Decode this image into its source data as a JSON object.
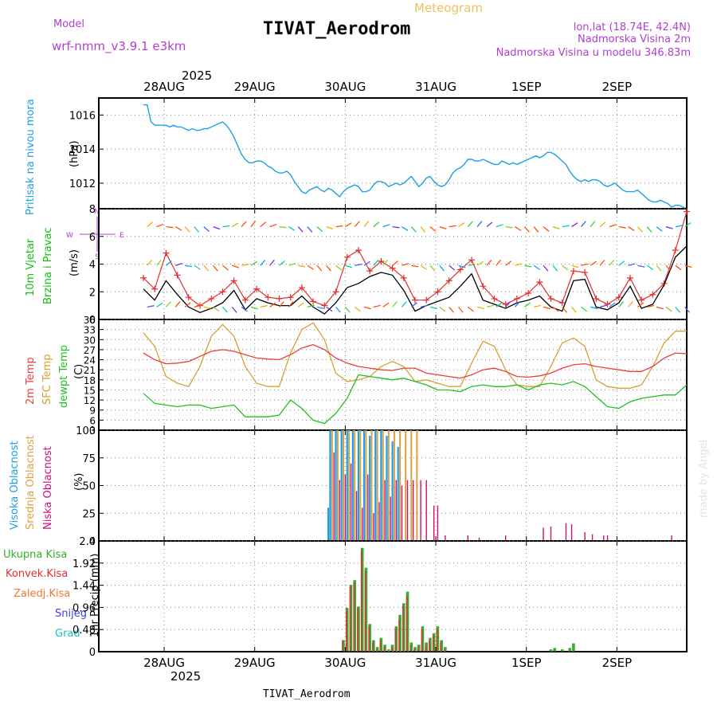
{
  "header": {
    "model_label": "Model",
    "model_name": "wrf-nmm_v3.9.1  e3km",
    "subtitle": "Meteogram",
    "station": "TIVAT_Aerodrom",
    "lonlat": "lon,lat (18.74E, 42.4N)",
    "elevation": "Nadmorska Visina 2m",
    "model_elevation": "Nadmorska Visina u modelu 346.83m",
    "footer_station": "TIVAT_Aerodrom",
    "credit": "made by Angel"
  },
  "colors": {
    "pressure": "#1fa0e6",
    "wind_label": "#10c010",
    "temp2m": "#e8403a",
    "sfc": "#d8a030",
    "dewpt": "#20c020",
    "high_cloud": "#1aa0e8",
    "mid_cloud": "#e0a040",
    "low_cloud": "#cc1077",
    "total_precip": "#30b030",
    "conv_precip": "#e03030",
    "frozen": "#f07830",
    "snow": "#4040e0",
    "graupel": "#20c0c0",
    "purple": "#b040d0",
    "orange": "#f0c060"
  },
  "time_axis": {
    "year": "2025",
    "days": [
      "28AUG",
      "29AUG",
      "30AUG",
      "31AUG",
      "1SEP",
      "2SEP"
    ],
    "start_hour": 0,
    "end_hour": 144
  },
  "chart_data": [
    {
      "type": "line",
      "title": "Pritisak na nivou mora",
      "ylabel": "(hPa)",
      "ylim": [
        1010.5,
        1017
      ],
      "yticks": [
        "1012",
        "1014",
        "1016"
      ],
      "x_hours": [
        0,
        1,
        2,
        3,
        4,
        5,
        6,
        7,
        8,
        9,
        10,
        11,
        12,
        13,
        14,
        15,
        16,
        17,
        18,
        19,
        20,
        21,
        22,
        23,
        24,
        25,
        26,
        27,
        28,
        29,
        30,
        31,
        32,
        33,
        34,
        35,
        36,
        37,
        38,
        39,
        40,
        41,
        42,
        43,
        44,
        45,
        46,
        47,
        48,
        49,
        50,
        51,
        52,
        53,
        54,
        55,
        56,
        57,
        58,
        59,
        60,
        61,
        62,
        63,
        64,
        65,
        66,
        67,
        68,
        69,
        70,
        71,
        72,
        73,
        74,
        75,
        76,
        77,
        78,
        79,
        80,
        81,
        82,
        83,
        84,
        85,
        86,
        87,
        88,
        89,
        90,
        91,
        92,
        93,
        94,
        95,
        96,
        97,
        98,
        99,
        100,
        101,
        102,
        103,
        104,
        105,
        106,
        107,
        108,
        109,
        110,
        111,
        112,
        113,
        114,
        115,
        116,
        117,
        118,
        119,
        120,
        121,
        122,
        123,
        124,
        125,
        126,
        127,
        128,
        129,
        130,
        131,
        132,
        133,
        134,
        135,
        136,
        137,
        138,
        139,
        140,
        141,
        142,
        143,
        144
      ],
      "values": [
        1016.6,
        1016.6,
        1015.6,
        1015.4,
        1015.4,
        1015.4,
        1015.4,
        1015.3,
        1015.4,
        1015.3,
        1015.3,
        1015.2,
        1015.1,
        1015.2,
        1015.1,
        1015.1,
        1015.2,
        1015.2,
        1015.3,
        1015.4,
        1015.5,
        1015.6,
        1015.4,
        1015.1,
        1014.7,
        1014.2,
        1013.7,
        1013.4,
        1013.2,
        1013.2,
        1013.3,
        1013.3,
        1013.2,
        1013.0,
        1012.9,
        1012.7,
        1012.6,
        1012.6,
        1012.7,
        1012.5,
        1012.1,
        1011.8,
        1011.5,
        1011.4,
        1011.6,
        1011.7,
        1011.8,
        1011.6,
        1011.5,
        1011.7,
        1011.6,
        1011.4,
        1011.2,
        1011.5,
        1011.7,
        1011.8,
        1011.9,
        1011.8,
        1011.5,
        1011.5,
        1011.6,
        1011.9,
        1012.1,
        1012.1,
        1012.0,
        1011.8,
        1011.9,
        1012.0,
        1011.9,
        1012.0,
        1012.2,
        1012.4,
        1012.1,
        1011.8,
        1012.0,
        1012.3,
        1012.4,
        1012.1,
        1011.9,
        1011.8,
        1011.9,
        1012.2,
        1012.6,
        1012.8,
        1012.9,
        1013.1,
        1013.4,
        1013.4,
        1013.3,
        1013.3,
        1013.4,
        1013.3,
        1013.2,
        1013.1,
        1013.1,
        1013.3,
        1013.2,
        1013.1,
        1013.2,
        1013.1,
        1013.2,
        1013.3,
        1013.4,
        1013.5,
        1013.6,
        1013.5,
        1013.6,
        1013.8,
        1013.8,
        1013.7,
        1013.5,
        1013.3,
        1013.1,
        1012.7,
        1012.4,
        1012.2,
        1012.1,
        1012.2,
        1012.1,
        1012.2,
        1012.2,
        1012.1,
        1011.9,
        1011.8,
        1011.9,
        1012.0,
        1011.8,
        1011.6,
        1011.5,
        1011.5,
        1011.5,
        1011.6,
        1011.4,
        1011.2,
        1011.0,
        1010.9,
        1010.9,
        1011.0,
        1010.9,
        1010.8,
        1010.6,
        1010.7,
        1010.7,
        1010.6,
        1010.5
      ]
    },
    {
      "type": "line",
      "title": "10m Vjetar Brzina i Pravac",
      "ylabel": "(m/s)",
      "ylim": [
        0,
        8
      ],
      "yticks": [
        "0",
        "2",
        "4",
        "6",
        "8"
      ],
      "compass": [
        "N",
        "W",
        "E",
        "S"
      ],
      "x_hours": [
        0,
        3,
        6,
        9,
        12,
        15,
        18,
        21,
        24,
        27,
        30,
        33,
        36,
        39,
        42,
        45,
        48,
        51,
        54,
        57,
        60,
        63,
        66,
        69,
        72,
        75,
        78,
        81,
        84,
        87,
        90,
        93,
        96,
        99,
        102,
        105,
        108,
        111,
        114,
        117,
        120,
        123,
        126,
        129,
        132,
        135,
        138,
        141,
        144
      ],
      "speed": [
        2.2,
        1.4,
        2.8,
        1.8,
        0.9,
        0.5,
        0.8,
        1.2,
        2.1,
        0.7,
        1.5,
        1.2,
        1.0,
        1.0,
        1.7,
        0.9,
        0.4,
        1.2,
        2.3,
        2.6,
        3.1,
        3.4,
        3.2,
        2.1,
        0.6,
        1.0,
        1.3,
        1.6,
        2.4,
        3.3,
        1.4,
        1.1,
        0.8,
        1.2,
        1.4,
        1.7,
        0.9,
        0.6,
        2.8,
        2.9,
        0.9,
        0.7,
        1.2,
        2.4,
        0.8,
        1.1,
        2.5,
        4.5,
        5.3
      ],
      "gust": [
        3.0,
        2.2,
        4.8,
        3.2,
        1.6,
        1.0,
        1.5,
        2.0,
        2.8,
        1.4,
        2.2,
        1.6,
        1.5,
        1.6,
        2.3,
        1.3,
        1.0,
        2.0,
        4.5,
        5.0,
        3.5,
        4.2,
        3.7,
        3.0,
        1.4,
        1.4,
        2.0,
        2.8,
        3.6,
        4.3,
        2.4,
        1.5,
        1.1,
        1.5,
        1.9,
        2.7,
        1.5,
        1.2,
        3.5,
        3.4,
        1.5,
        1.1,
        1.6,
        3.0,
        1.4,
        1.8,
        2.6,
        5.0,
        7.8
      ]
    },
    {
      "type": "line",
      "title": "2m Temp / SFC Temp / dewpt Temp",
      "series_labels": [
        "2m Temp",
        "SFC Temp",
        "dewpt Temp"
      ],
      "ylabel": "(C)",
      "ylim": [
        3,
        36
      ],
      "yticks": [
        "3",
        "6",
        "9",
        "12",
        "15",
        "18",
        "21",
        "24",
        "27",
        "30",
        "33",
        "36"
      ],
      "x_hours": [
        0,
        3,
        6,
        9,
        12,
        15,
        18,
        21,
        24,
        27,
        30,
        33,
        36,
        39,
        42,
        45,
        48,
        51,
        54,
        57,
        60,
        63,
        66,
        69,
        72,
        75,
        78,
        81,
        84,
        87,
        90,
        93,
        96,
        99,
        102,
        105,
        108,
        111,
        114,
        117,
        120,
        123,
        126,
        129,
        132,
        135,
        138,
        141,
        144
      ],
      "temp2m": [
        26.0,
        24.0,
        22.8,
        23.0,
        23.5,
        25.0,
        26.5,
        27.0,
        26.5,
        25.5,
        24.5,
        24.2,
        24.0,
        25.5,
        27.5,
        28.5,
        27.0,
        24.5,
        23.0,
        22.0,
        21.5,
        21.0,
        20.8,
        21.5,
        21.5,
        20.0,
        19.5,
        19.0,
        18.5,
        19.5,
        21.0,
        21.5,
        20.5,
        19.0,
        18.8,
        19.2,
        20.0,
        21.5,
        22.5,
        22.8,
        22.0,
        21.5,
        21.0,
        20.5,
        20.5,
        22.0,
        24.5,
        26.0,
        25.8
      ],
      "sfc": [
        32.0,
        28.0,
        19.0,
        17.0,
        16.0,
        22.0,
        31.0,
        34.5,
        31.0,
        22.0,
        17.0,
        16.0,
        16.0,
        26.0,
        33.0,
        35.0,
        30.0,
        20.0,
        17.5,
        18.0,
        19.0,
        22.0,
        23.5,
        22.0,
        17.5,
        18.0,
        17.0,
        16.0,
        16.0,
        23.0,
        29.5,
        28.0,
        21.0,
        16.5,
        16.0,
        16.0,
        22.0,
        29.0,
        30.5,
        28.0,
        18.0,
        16.0,
        15.5,
        15.5,
        16.5,
        22.0,
        29.0,
        32.5,
        32.5
      ],
      "dewpt": [
        14.0,
        11.0,
        10.5,
        10.0,
        10.5,
        10.5,
        9.5,
        10.0,
        10.5,
        7.0,
        7.0,
        7.0,
        7.5,
        12.0,
        9.5,
        6.0,
        5.0,
        8.0,
        12.5,
        19.5,
        19.0,
        18.5,
        18.0,
        18.5,
        17.5,
        16.5,
        15.0,
        15.0,
        14.5,
        16.0,
        16.5,
        16.0,
        16.0,
        16.5,
        15.0,
        16.5,
        17.0,
        16.5,
        17.5,
        16.0,
        13.0,
        10.0,
        9.5,
        11.5,
        12.5,
        13.0,
        13.5,
        13.5,
        16.5
      ]
    },
    {
      "type": "bar",
      "title": "Visoka / Srednja / Niska Oblacnost",
      "series_labels": [
        "Visoka Oblacnost",
        "Srednja Oblacnost",
        "Niska Oblacnost"
      ],
      "ylabel": "(%)",
      "ylim": [
        0,
        100
      ],
      "yticks": [
        "0",
        "25",
        "50",
        "75",
        "100"
      ],
      "high": [
        [
          49,
          30
        ],
        [
          49.5,
          100
        ],
        [
          51,
          100
        ],
        [
          52.5,
          100
        ],
        [
          54,
          100
        ],
        [
          55.5,
          100
        ],
        [
          57,
          100
        ],
        [
          58.5,
          100
        ],
        [
          60,
          95
        ],
        [
          61.5,
          100
        ],
        [
          63,
          100
        ],
        [
          64.5,
          95
        ],
        [
          66,
          90
        ],
        [
          67.5,
          85
        ]
      ],
      "mid": [
        [
          50,
          100
        ],
        [
          51.5,
          100
        ],
        [
          53,
          100
        ],
        [
          54.5,
          100
        ],
        [
          56,
          100
        ],
        [
          57.5,
          100
        ],
        [
          59,
          100
        ],
        [
          60.5,
          100
        ],
        [
          62,
          100
        ],
        [
          63.5,
          100
        ],
        [
          65,
          100
        ],
        [
          66.5,
          100
        ],
        [
          68,
          100
        ],
        [
          69.5,
          100
        ],
        [
          71,
          100
        ],
        [
          72.5,
          100
        ]
      ],
      "low": [
        [
          50.5,
          80
        ],
        [
          52,
          55
        ],
        [
          53.5,
          60
        ],
        [
          55,
          70
        ],
        [
          56.5,
          45
        ],
        [
          58,
          30
        ],
        [
          59.5,
          60
        ],
        [
          61,
          25
        ],
        [
          62.5,
          35
        ],
        [
          64,
          55
        ],
        [
          65.5,
          40
        ],
        [
          67,
          55
        ],
        [
          68.5,
          50
        ],
        [
          70,
          55
        ],
        [
          71.5,
          55
        ],
        [
          73.5,
          55
        ],
        [
          75,
          55
        ],
        [
          77,
          32
        ],
        [
          78,
          32
        ],
        [
          80,
          5
        ],
        [
          86,
          5
        ],
        [
          89,
          3
        ],
        [
          96,
          5
        ],
        [
          106,
          12
        ],
        [
          108,
          13
        ],
        [
          112,
          16
        ],
        [
          113.5,
          15
        ],
        [
          117,
          8
        ],
        [
          119,
          6
        ],
        [
          122,
          5
        ],
        [
          123,
          5
        ],
        [
          140,
          5
        ]
      ]
    },
    {
      "type": "bar",
      "title": "1hr Precip",
      "series_labels": [
        "Ukupna Kisa",
        "Konvek.Kisa",
        "Zaledj.Kisa",
        "Snijeg",
        "Grad"
      ],
      "ylabel": "1hr Precip (mm)",
      "ylim": [
        0,
        2.4
      ],
      "yticks": [
        "0",
        "0.48",
        "0.96",
        "1.44",
        "1.92",
        "2.4"
      ],
      "total": [
        [
          53,
          0.25
        ],
        [
          54,
          0.95
        ],
        [
          55,
          1.45
        ],
        [
          56,
          1.55
        ],
        [
          57,
          0.98
        ],
        [
          58,
          2.25
        ],
        [
          59,
          1.82
        ],
        [
          60,
          0.6
        ],
        [
          61,
          0.25
        ],
        [
          62,
          0.1
        ],
        [
          63,
          0.3
        ],
        [
          64,
          0.15
        ],
        [
          65,
          0.05
        ],
        [
          66,
          0.15
        ],
        [
          67,
          0.55
        ],
        [
          68,
          0.8
        ],
        [
          69,
          1.05
        ],
        [
          70,
          1.3
        ],
        [
          71,
          0.2
        ],
        [
          72,
          0.1
        ],
        [
          73,
          0.15
        ],
        [
          74,
          0.55
        ],
        [
          75,
          0.2
        ],
        [
          76,
          0.3
        ],
        [
          77,
          0.4
        ],
        [
          78,
          0.55
        ],
        [
          79,
          0.25
        ],
        [
          80,
          0.1
        ],
        [
          108,
          0.05
        ],
        [
          109,
          0.08
        ],
        [
          111,
          0.05
        ],
        [
          113,
          0.08
        ],
        [
          114,
          0.18
        ]
      ],
      "conv": [
        [
          53,
          0.25
        ],
        [
          54,
          0.9
        ],
        [
          55,
          1.4
        ],
        [
          56,
          1.5
        ],
        [
          57,
          0.95
        ],
        [
          58,
          2.2
        ],
        [
          59,
          1.75
        ],
        [
          60,
          0.55
        ],
        [
          61,
          0.2
        ],
        [
          62,
          0.05
        ],
        [
          63,
          0.25
        ],
        [
          64,
          0.1
        ],
        [
          66,
          0.1
        ],
        [
          67,
          0.5
        ],
        [
          68,
          0.7
        ],
        [
          69,
          1.0
        ],
        [
          70,
          1.2
        ],
        [
          71,
          0.15
        ],
        [
          72,
          0.05
        ],
        [
          73,
          0.1
        ],
        [
          74,
          0.5
        ],
        [
          75,
          0.15
        ],
        [
          76,
          0.25
        ],
        [
          77,
          0.35
        ],
        [
          78,
          0.5
        ],
        [
          79,
          0.2
        ],
        [
          80,
          0.05
        ]
      ]
    }
  ]
}
